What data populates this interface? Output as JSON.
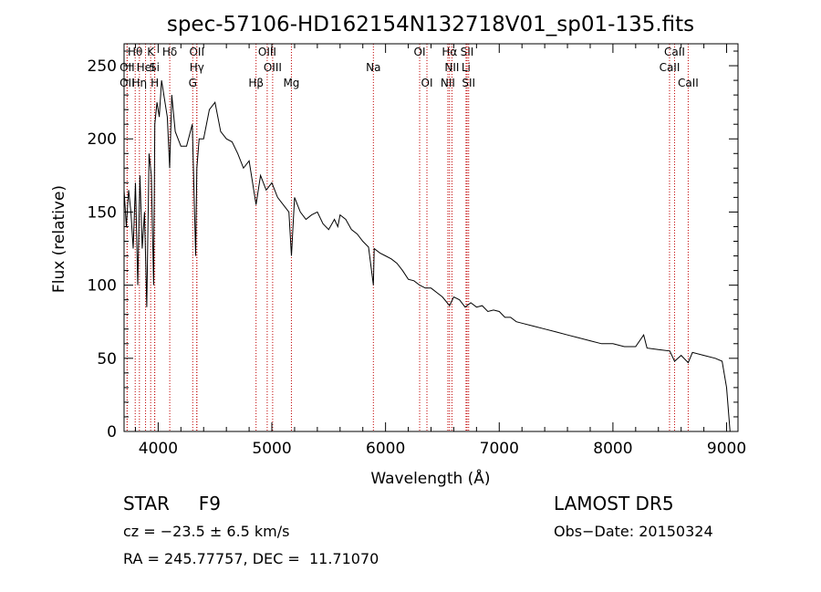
{
  "chart_data": {
    "type": "line",
    "title": "spec-57106-HD162154N132718V01_sp01-135.fits",
    "xlabel": "Wavelength (Å)",
    "ylabel": "Flux (relative)",
    "xlim": [
      3700,
      9100
    ],
    "ylim": [
      0,
      265
    ],
    "xticks": [
      4000,
      5000,
      6000,
      7000,
      8000,
      9000
    ],
    "yticks": [
      0,
      50,
      100,
      150,
      200,
      250
    ],
    "grid": false,
    "series": [
      {
        "x": [
          3700,
          3720,
          3740,
          3760,
          3780,
          3800,
          3820,
          3840,
          3860,
          3880,
          3900,
          3920,
          3940,
          3960,
          3970,
          3990,
          4010,
          4030,
          4050,
          4080,
          4101,
          4120,
          4150,
          4200,
          4250,
          4300,
          4330,
          4340,
          4360,
          4400,
          4450,
          4500,
          4550,
          4600,
          4650,
          4700,
          4750,
          4800,
          4861,
          4900,
          4950,
          5000,
          5050,
          5100,
          5150,
          5172,
          5200,
          5250,
          5300,
          5350,
          5400,
          5450,
          5500,
          5550,
          5580,
          5600,
          5650,
          5700,
          5750,
          5800,
          5850,
          5893,
          5900,
          5950,
          6000,
          6050,
          6100,
          6150,
          6200,
          6250,
          6300,
          6350,
          6400,
          6450,
          6500,
          6563,
          6600,
          6650,
          6700,
          6750,
          6800,
          6850,
          6900,
          6950,
          7000,
          7050,
          7100,
          7150,
          7200,
          7300,
          7400,
          7500,
          7600,
          7700,
          7800,
          7900,
          8000,
          8100,
          8200,
          8270,
          8300,
          8400,
          8500,
          8542,
          8600,
          8662,
          8700,
          8800,
          8900,
          8960,
          9000,
          9030
        ],
        "y": [
          165,
          140,
          165,
          150,
          125,
          170,
          100,
          175,
          125,
          150,
          85,
          190,
          175,
          100,
          210,
          225,
          215,
          240,
          230,
          215,
          180,
          230,
          205,
          195,
          195,
          210,
          120,
          180,
          200,
          200,
          220,
          225,
          205,
          200,
          198,
          190,
          180,
          185,
          155,
          175,
          165,
          170,
          160,
          155,
          150,
          120,
          160,
          150,
          145,
          148,
          150,
          142,
          138,
          145,
          140,
          148,
          145,
          138,
          135,
          130,
          126,
          100,
          125,
          122,
          120,
          118,
          115,
          110,
          104,
          103,
          100,
          98,
          98,
          95,
          92,
          86,
          92,
          90,
          85,
          88,
          85,
          86,
          82,
          83,
          82,
          78,
          78,
          75,
          74,
          72,
          70,
          68,
          66,
          64,
          62,
          60,
          60,
          58,
          58,
          66,
          57,
          56,
          55,
          48,
          52,
          47,
          54,
          52,
          50,
          48,
          30,
          0
        ]
      }
    ],
    "lines": [
      {
        "label": "Hθ",
        "x": 3798,
        "row": 1
      },
      {
        "label": "K",
        "x": 3934,
        "row": 1
      },
      {
        "label": "Hδ",
        "x": 4102,
        "row": 1
      },
      {
        "label": "OII",
        "x": 4340,
        "row": 1
      },
      {
        "label": "OIII",
        "x": 4959,
        "row": 1
      },
      {
        "label": "OI",
        "x": 6300,
        "row": 1
      },
      {
        "label": "Hα",
        "x": 6563,
        "row": 1
      },
      {
        "label": "SII",
        "x": 6717,
        "row": 1
      },
      {
        "label": "CaII",
        "x": 8542,
        "row": 1
      },
      {
        "label": "OII",
        "x": 3727,
        "row": 2
      },
      {
        "label": "HeI",
        "x": 3889,
        "row": 2
      },
      {
        "label": "Si",
        "x": 3969,
        "row": 2
      },
      {
        "label": "Hγ",
        "x": 4340,
        "row": 2
      },
      {
        "label": "OIII",
        "x": 5007,
        "row": 2
      },
      {
        "label": "Na",
        "x": 5893,
        "row": 2
      },
      {
        "label": "NII",
        "x": 6584,
        "row": 2
      },
      {
        "label": "Li",
        "x": 6708,
        "row": 2
      },
      {
        "label": "CaII",
        "x": 8498,
        "row": 2
      },
      {
        "label": "OII",
        "x": 3727,
        "row": 3
      },
      {
        "label": "Hη",
        "x": 3835,
        "row": 3
      },
      {
        "label": "H",
        "x": 3970,
        "row": 3
      },
      {
        "label": "G",
        "x": 4304,
        "row": 3
      },
      {
        "label": "Hβ",
        "x": 4861,
        "row": 3
      },
      {
        "label": "Mg",
        "x": 5172,
        "row": 3
      },
      {
        "label": "OI",
        "x": 6364,
        "row": 3
      },
      {
        "label": "NII",
        "x": 6548,
        "row": 3
      },
      {
        "label": "SII",
        "x": 6731,
        "row": 3
      },
      {
        "label": "CaII",
        "x": 8662,
        "row": 3
      }
    ]
  },
  "info": {
    "class": "STAR     F9",
    "cz": "cz = −23.5 ± 6.5 km/s",
    "radec": "RA = 245.77757, DEC =  11.71070",
    "survey": "LAMOST DR5",
    "obsdate": "Obs−Date: 20150324"
  }
}
